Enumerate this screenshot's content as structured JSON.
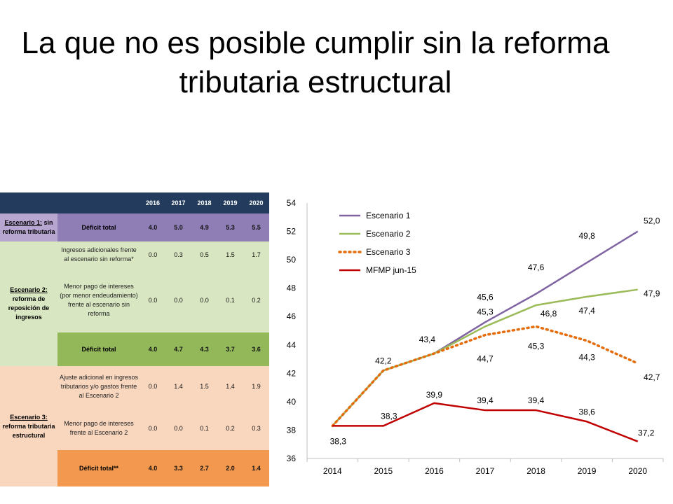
{
  "slide": {
    "title_line1": "La que no es posible cumplir sin la reforma",
    "title_line2": "tributaria estructural"
  },
  "table": {
    "years": [
      "2016",
      "2017",
      "2018",
      "2019",
      "2020"
    ],
    "scenario1": {
      "label_prefix": "Escenario 1:",
      "label_rest": " sin reforma tributaria",
      "rows": [
        {
          "desc": "Déficit total",
          "values": [
            "4.0",
            "5.0",
            "4.9",
            "5.3",
            "5.5"
          ]
        }
      ]
    },
    "scenario2": {
      "label_prefix": "Escenario 2:",
      "label_rest": " reforma de reposición de ingresos",
      "rows": [
        {
          "desc": "Ingresos adicionales frente al escenario sin reforma*",
          "values": [
            "0.0",
            "0.3",
            "0.5",
            "1.5",
            "1.7"
          ]
        },
        {
          "desc": "Menor pago de intereses (por menor endeudamiento) frente al escenario sin reforma",
          "values": [
            "0.0",
            "0.0",
            "0.0",
            "0.1",
            "0.2"
          ]
        },
        {
          "desc": "Déficit total",
          "values": [
            "4.0",
            "4.7",
            "4.3",
            "3.7",
            "3.6"
          ]
        }
      ]
    },
    "scenario3": {
      "label_prefix": "Escenario 3:",
      "label_rest": " reforma tributaria estructural",
      "rows": [
        {
          "desc": "Ajuste adicional en ingresos tributarios y/o gastos frente al Escenario 2",
          "values": [
            "0.0",
            "1.4",
            "1.5",
            "1.4",
            "1.9"
          ]
        },
        {
          "desc": "Menor pago de intereses frente al Escenario 2",
          "values": [
            "0.0",
            "0.0",
            "0.1",
            "0.2",
            "0.3"
          ]
        },
        {
          "desc": "Déficit total**",
          "values": [
            "4.0",
            "3.3",
            "2.7",
            "2.0",
            "1.4"
          ]
        }
      ]
    }
  },
  "chart_data": {
    "type": "line",
    "x": [
      2014,
      2015,
      2016,
      2017,
      2018,
      2019,
      2020
    ],
    "xticks": [
      "2014",
      "2015",
      "2016",
      "2017",
      "2018",
      "2019",
      "2020"
    ],
    "ylim": [
      36,
      54
    ],
    "yticks": [
      "36",
      "38",
      "40",
      "42",
      "44",
      "46",
      "48",
      "50",
      "52",
      "54"
    ],
    "legend_position": "top-left",
    "grid": false,
    "series": [
      {
        "name": "Escenario 1",
        "color": "#8064a2",
        "dash": "solid",
        "values": [
          38.3,
          42.2,
          43.4,
          45.6,
          47.6,
          49.8,
          52.0
        ],
        "labels": [
          null,
          null,
          null,
          "45,6",
          "47,6",
          "49,8",
          "52,0"
        ]
      },
      {
        "name": "Escenario 2",
        "color": "#9bbb59",
        "dash": "solid",
        "values": [
          38.3,
          42.2,
          43.4,
          45.3,
          46.8,
          47.4,
          47.9
        ],
        "labels": [
          null,
          "42,2",
          "43,4",
          "45,3",
          "46,8",
          "47,4",
          "47,9"
        ]
      },
      {
        "name": "Escenario 3",
        "color": "#e46c0a",
        "dash": "dotted",
        "values": [
          38.3,
          42.2,
          43.4,
          44.7,
          45.3,
          44.3,
          42.7
        ],
        "labels": [
          null,
          null,
          null,
          "44,7",
          "45,3",
          "44,3",
          "42,7"
        ]
      },
      {
        "name": "MFMP jun-15",
        "color": "#c00000",
        "dash": "solid",
        "values": [
          38.3,
          38.3,
          39.9,
          39.4,
          39.4,
          38.6,
          37.2
        ],
        "labels": [
          "38,3",
          "38,3",
          "39,9",
          "39,4",
          "39,4",
          "38,6",
          "37,2"
        ]
      }
    ]
  }
}
